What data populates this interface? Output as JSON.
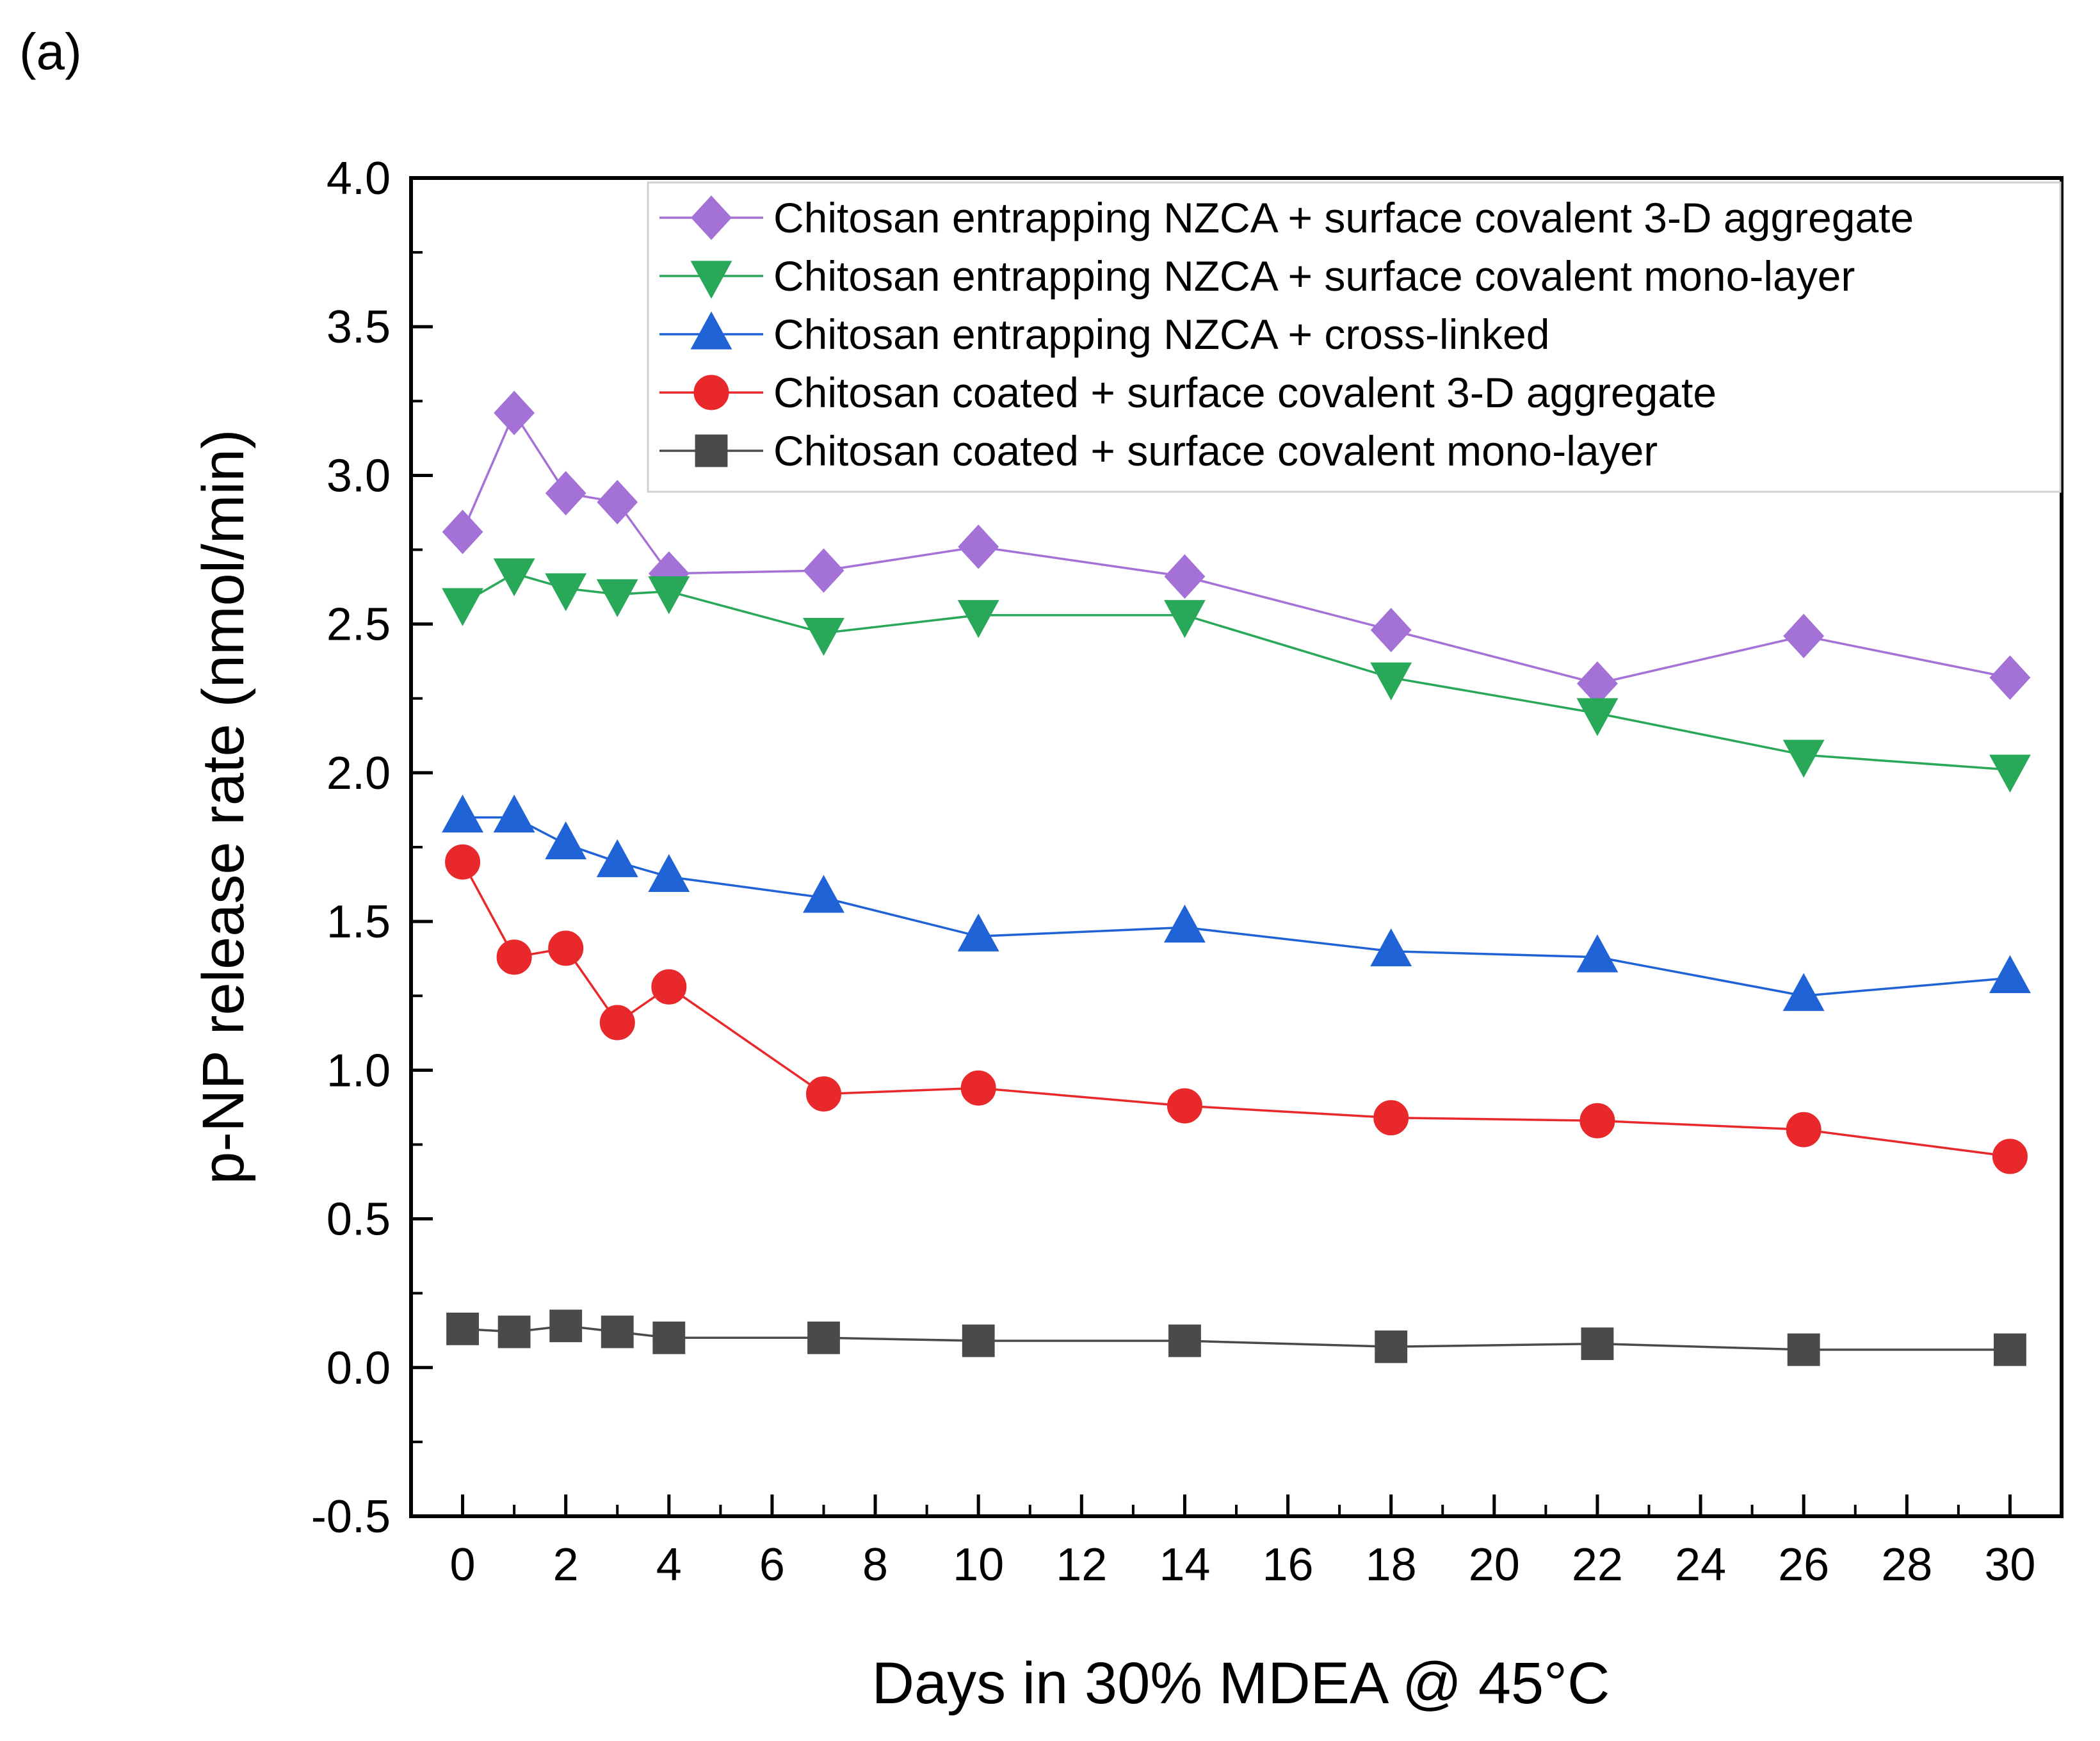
{
  "panel_label": "(a)",
  "chart_data": {
    "type": "line",
    "title": "",
    "xlabel": "Days in 30% MDEA @ 45°C",
    "ylabel": "p-NP release rate (nmol/min)",
    "xlim": [
      -1,
      31
    ],
    "ylim": [
      -0.5,
      4.0
    ],
    "x": [
      0,
      1,
      2,
      3,
      4,
      7,
      10,
      14,
      18,
      22,
      26,
      30
    ],
    "xticks": [
      0,
      2,
      4,
      6,
      8,
      10,
      12,
      14,
      16,
      18,
      20,
      22,
      24,
      26,
      28,
      30
    ],
    "xtick_labels": [
      "0",
      "2",
      "4",
      "6",
      "8",
      "10",
      "12",
      "14",
      "16",
      "18",
      "20",
      "22",
      "24",
      "26",
      "28",
      "30"
    ],
    "yticks": [
      -0.5,
      0.0,
      0.5,
      1.0,
      1.5,
      2.0,
      2.5,
      3.0,
      3.5,
      4.0
    ],
    "ytick_labels": [
      "-0.5",
      "0.0",
      "0.5",
      "1.0",
      "1.5",
      "2.0",
      "2.5",
      "3.0",
      "3.5",
      "4.0"
    ],
    "grid": false,
    "legend_position": "top-right",
    "series": [
      {
        "name": "Chitosan entrapping NZCA + surface covalent 3-D aggregate",
        "marker": "diamond",
        "color": "#a472d6",
        "values": [
          2.81,
          3.21,
          2.94,
          2.91,
          2.67,
          2.68,
          2.76,
          2.66,
          2.48,
          2.3,
          2.46,
          2.32
        ]
      },
      {
        "name": "Chitosan entrapping NZCA + surface covalent mono-layer",
        "marker": "triangle-down",
        "color": "#2aa85a",
        "values": [
          2.57,
          2.67,
          2.62,
          2.6,
          2.61,
          2.47,
          2.53,
          2.53,
          2.32,
          2.2,
          2.06,
          2.01
        ]
      },
      {
        "name": "Chitosan entrapping NZCA + cross-linked",
        "marker": "triangle-up",
        "color": "#1f63d6",
        "values": [
          1.85,
          1.85,
          1.76,
          1.7,
          1.65,
          1.58,
          1.45,
          1.48,
          1.4,
          1.38,
          1.25,
          1.31
        ]
      },
      {
        "name": "Chitosan coated + surface covalent 3-D aggregate",
        "marker": "circle",
        "color": "#e8282a",
        "values": [
          1.7,
          1.38,
          1.41,
          1.16,
          1.28,
          0.92,
          0.94,
          0.88,
          0.84,
          0.83,
          0.8,
          0.71
        ]
      },
      {
        "name": "Chitosan coated + surface covalent mono-layer",
        "marker": "square",
        "color": "#4a4a4a",
        "values": [
          0.13,
          0.12,
          0.14,
          0.12,
          0.1,
          0.1,
          0.09,
          0.09,
          0.07,
          0.08,
          0.06,
          0.06
        ]
      }
    ]
  }
}
